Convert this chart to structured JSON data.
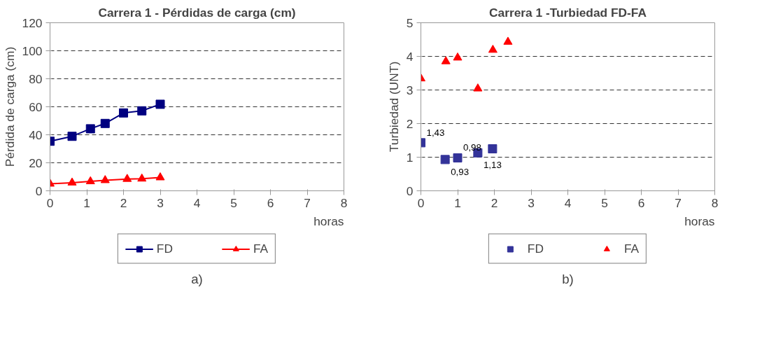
{
  "chart_data": [
    {
      "type": "line",
      "title": "Carrera 1 - Pérdidas de carga (cm)",
      "ylabel": "Pérdida de carga (cm)",
      "xlabel": "horas",
      "xlim": [
        0,
        8
      ],
      "xticks": [
        0,
        1,
        2,
        3,
        4,
        5,
        6,
        7,
        8
      ],
      "ylim": [
        0,
        120
      ],
      "yticks": [
        0,
        20,
        40,
        60,
        80,
        100,
        120
      ],
      "grid": "y",
      "legend": "bottom",
      "line_style": "solid",
      "annotations": [
        "a)"
      ],
      "series": [
        {
          "name": "FD",
          "color": "#000080",
          "marker": "square",
          "x": [
            0,
            0.6,
            1.1,
            1.5,
            2.0,
            2.5,
            3.0
          ],
          "values": [
            35.4,
            38.9,
            44.3,
            48.1,
            55.6,
            57.1,
            61.8
          ]
        },
        {
          "name": "FA",
          "color": "#ff0000",
          "marker": "triangle",
          "x": [
            0,
            0.6,
            1.1,
            1.5,
            2.1,
            2.5,
            3.0
          ],
          "values": [
            5.0,
            5.8,
            6.7,
            7.5,
            8.4,
            8.6,
            9.5
          ]
        }
      ]
    },
    {
      "type": "scatter",
      "title": "Carrera 1 -Turbiedad FD-FA",
      "ylabel": "Turbiedad (UNT)",
      "xlabel": "horas",
      "xlim": [
        0,
        8
      ],
      "xticks": [
        0,
        1,
        2,
        3,
        4,
        5,
        6,
        7,
        8
      ],
      "ylim": [
        0,
        5
      ],
      "yticks": [
        0,
        1,
        2,
        3,
        4,
        5
      ],
      "grid": "y",
      "legend": "bottom",
      "annotations": [
        "b)"
      ],
      "series": [
        {
          "name": "FD",
          "color": "#333399",
          "marker": "square",
          "x": [
            0,
            0.66,
            1.0,
            1.55,
            1.95
          ],
          "values": [
            1.43,
            0.93,
            0.98,
            1.13,
            1.25
          ],
          "value_labels": [
            "1,43",
            "0,93",
            "0,98",
            "1,13",
            null
          ]
        },
        {
          "name": "FA",
          "color": "#ff0000",
          "marker": "triangle",
          "x": [
            0,
            0.68,
            1.0,
            1.55,
            1.96,
            2.37
          ],
          "values": [
            3.34,
            3.85,
            3.96,
            3.04,
            4.19,
            4.43
          ]
        }
      ]
    }
  ]
}
